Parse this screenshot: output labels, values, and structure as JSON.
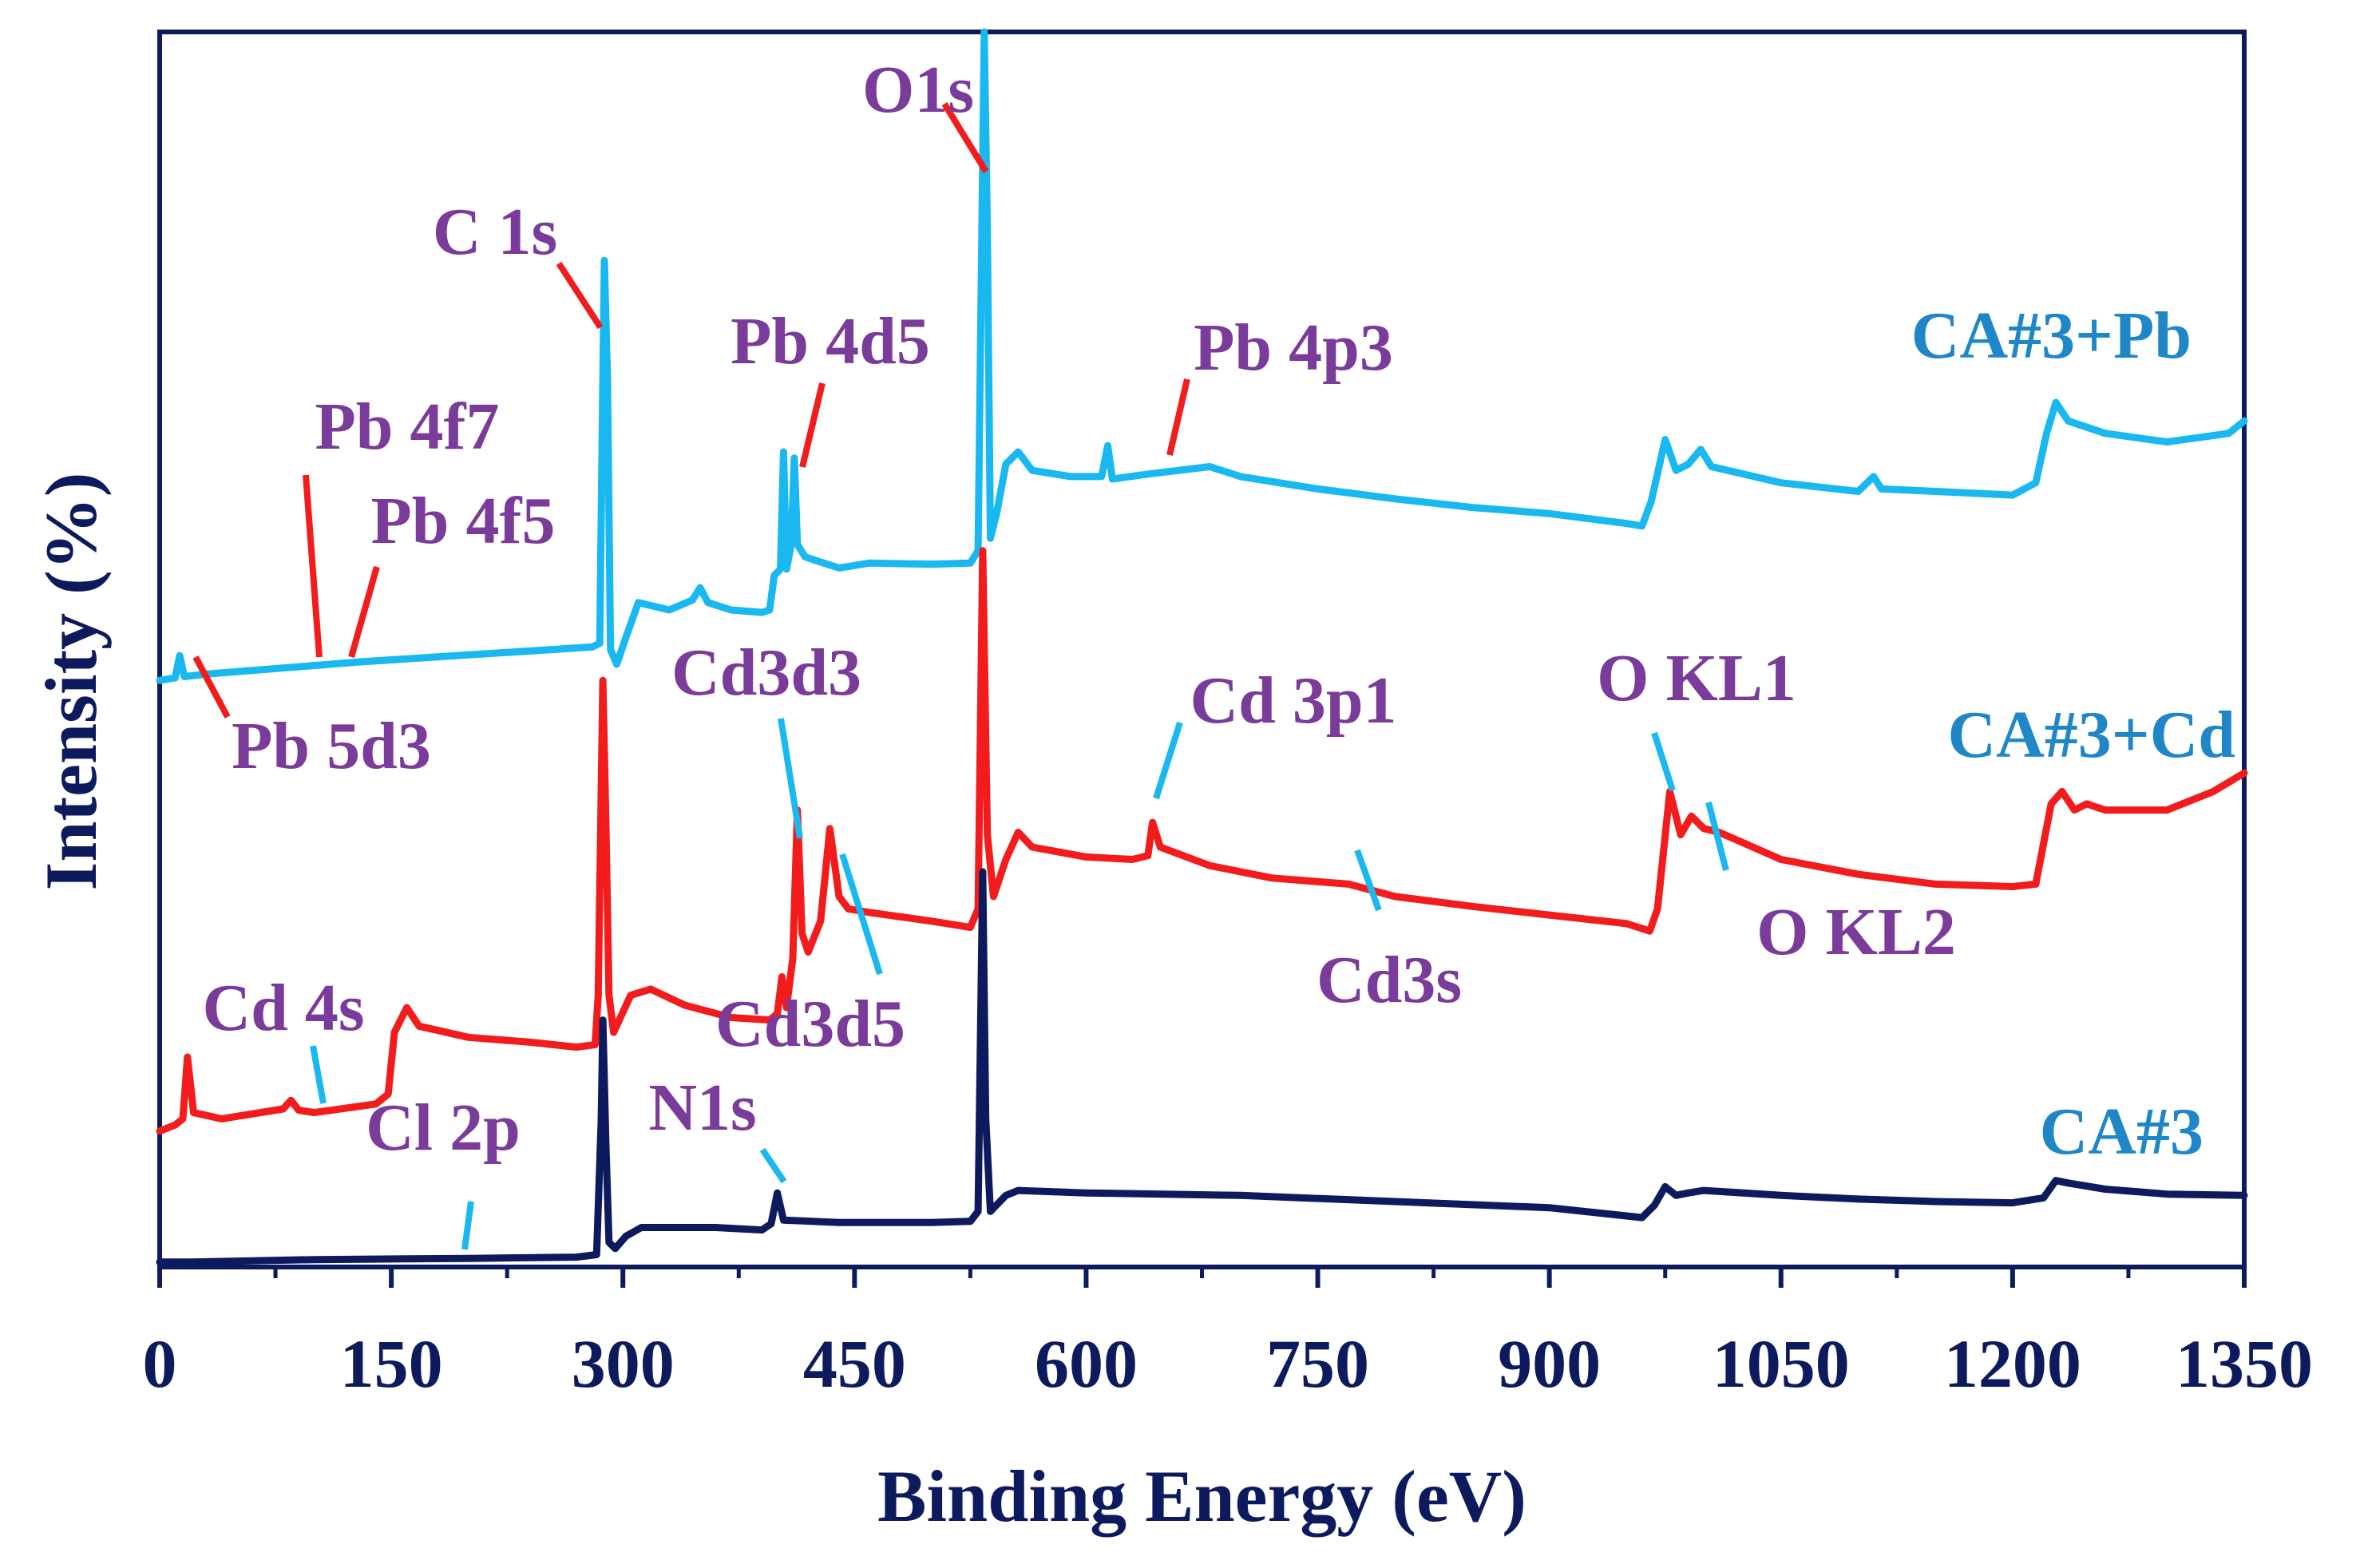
{
  "chart_data": {
    "type": "line",
    "title": "",
    "xlabel": "Binding Energy (eV)",
    "ylabel": "Intensity (%)",
    "xlim": [
      0,
      1350
    ],
    "ylim": [
      0,
      100
    ],
    "x_ticks": [
      "0",
      "150",
      "300",
      "450",
      "600",
      "750",
      "900",
      "1050",
      "1200",
      "1350"
    ],
    "y_ticks_visible": false,
    "series": [
      {
        "name": "CA#3+Pb",
        "color": "#1ab8f0",
        "points": [
          [
            0,
            47.5
          ],
          [
            10,
            47.7
          ],
          [
            13,
            49.5
          ],
          [
            16,
            47.8
          ],
          [
            30,
            48.0
          ],
          [
            80,
            48.5
          ],
          [
            130,
            49.0
          ],
          [
            180,
            49.4
          ],
          [
            230,
            49.8
          ],
          [
            280,
            50.2
          ],
          [
            285,
            50.5
          ],
          [
            287,
            72
          ],
          [
            288,
            81.5
          ],
          [
            290,
            72
          ],
          [
            292,
            50
          ],
          [
            296,
            48.8
          ],
          [
            302,
            51.0
          ],
          [
            310,
            53.8
          ],
          [
            330,
            53.2
          ],
          [
            345,
            54.0
          ],
          [
            350,
            55.0
          ],
          [
            355,
            53.8
          ],
          [
            370,
            53.2
          ],
          [
            390,
            53.0
          ],
          [
            395,
            53.2
          ],
          [
            398,
            56.0
          ],
          [
            402,
            56.5
          ],
          [
            404,
            66.0
          ],
          [
            406,
            56.5
          ],
          [
            409,
            58.5
          ],
          [
            411,
            65.5
          ],
          [
            413,
            58.5
          ],
          [
            418,
            57.5
          ],
          [
            425,
            57.2
          ],
          [
            440,
            56.6
          ],
          [
            460,
            57.0
          ],
          [
            500,
            56.9
          ],
          [
            525,
            57.0
          ],
          [
            530,
            58.0
          ],
          [
            534,
            100
          ],
          [
            536,
            84
          ],
          [
            538,
            59
          ],
          [
            542,
            61
          ],
          [
            548,
            65.0
          ],
          [
            556,
            66.0
          ],
          [
            565,
            64.5
          ],
          [
            590,
            64.0
          ],
          [
            610,
            64.0
          ],
          [
            614,
            66.5
          ],
          [
            617,
            63.8
          ],
          [
            640,
            64.2
          ],
          [
            660,
            64.5
          ],
          [
            680,
            64.8
          ],
          [
            700,
            64.0
          ],
          [
            750,
            63.0
          ],
          [
            800,
            62.2
          ],
          [
            850,
            61.5
          ],
          [
            900,
            61.0
          ],
          [
            950,
            60.2
          ],
          [
            960,
            60.0
          ],
          [
            966,
            62.0
          ],
          [
            975,
            67.0
          ],
          [
            982,
            64.5
          ],
          [
            990,
            65.0
          ],
          [
            998,
            66.2
          ],
          [
            1005,
            64.8
          ],
          [
            1050,
            63.5
          ],
          [
            1100,
            62.8
          ],
          [
            1110,
            64.0
          ],
          [
            1115,
            63.0
          ],
          [
            1150,
            62.8
          ],
          [
            1200,
            62.5
          ],
          [
            1215,
            63.5
          ],
          [
            1222,
            67.5
          ],
          [
            1228,
            70.0
          ],
          [
            1236,
            68.5
          ],
          [
            1260,
            67.5
          ],
          [
            1300,
            66.8
          ],
          [
            1340,
            67.5
          ],
          [
            1350,
            68.5
          ]
        ]
      },
      {
        "name": "CA#3+Cd",
        "color": "#f21c1c",
        "points": [
          [
            0,
            11.0
          ],
          [
            10,
            11.5
          ],
          [
            15,
            12.0
          ],
          [
            18,
            17.0
          ],
          [
            22,
            12.5
          ],
          [
            40,
            12.0
          ],
          [
            80,
            12.8
          ],
          [
            85,
            13.5
          ],
          [
            90,
            12.7
          ],
          [
            100,
            12.5
          ],
          [
            140,
            13.2
          ],
          [
            148,
            14.0
          ],
          [
            152,
            19.0
          ],
          [
            160,
            21.0
          ],
          [
            168,
            19.5
          ],
          [
            200,
            18.6
          ],
          [
            240,
            18.2
          ],
          [
            270,
            17.8
          ],
          [
            282,
            18.0
          ],
          [
            284,
            22
          ],
          [
            287,
            47.5
          ],
          [
            289,
            36
          ],
          [
            291,
            22
          ],
          [
            294,
            19.0
          ],
          [
            305,
            22.0
          ],
          [
            318,
            22.5
          ],
          [
            340,
            21.2
          ],
          [
            370,
            20.2
          ],
          [
            395,
            20.0
          ],
          [
            400,
            20.5
          ],
          [
            403,
            23.5
          ],
          [
            406,
            21.0
          ],
          [
            410,
            25.0
          ],
          [
            413,
            37.0
          ],
          [
            416,
            27.0
          ],
          [
            420,
            25.5
          ],
          [
            428,
            28.0
          ],
          [
            434,
            35.5
          ],
          [
            440,
            30.0
          ],
          [
            446,
            29.0
          ],
          [
            460,
            28.7
          ],
          [
            500,
            28.0
          ],
          [
            525,
            27.5
          ],
          [
            530,
            29.0
          ],
          [
            533,
            58.0
          ],
          [
            536,
            35
          ],
          [
            540,
            30
          ],
          [
            548,
            33.0
          ],
          [
            556,
            35.2
          ],
          [
            565,
            34.0
          ],
          [
            600,
            33.2
          ],
          [
            630,
            33.0
          ],
          [
            640,
            33.3
          ],
          [
            643,
            36.0
          ],
          [
            648,
            34.0
          ],
          [
            680,
            32.5
          ],
          [
            720,
            31.5
          ],
          [
            770,
            31.0
          ],
          [
            800,
            30.0
          ],
          [
            850,
            29.2
          ],
          [
            900,
            28.5
          ],
          [
            950,
            27.8
          ],
          [
            965,
            27.2
          ],
          [
            970,
            29.0
          ],
          [
            978,
            38.5
          ],
          [
            985,
            35.0
          ],
          [
            992,
            36.5
          ],
          [
            1000,
            35.5
          ],
          [
            1010,
            35.2
          ],
          [
            1050,
            33.0
          ],
          [
            1100,
            31.8
          ],
          [
            1150,
            31.0
          ],
          [
            1200,
            30.8
          ],
          [
            1215,
            31.0
          ],
          [
            1225,
            37.5
          ],
          [
            1232,
            38.5
          ],
          [
            1240,
            37.0
          ],
          [
            1248,
            37.5
          ],
          [
            1260,
            37.0
          ],
          [
            1300,
            37.0
          ],
          [
            1330,
            38.5
          ],
          [
            1350,
            40.0
          ]
        ]
      },
      {
        "name": "CA#3",
        "color": "#0d1b5e",
        "points": [
          [
            0,
            0.4
          ],
          [
            20,
            0.4
          ],
          [
            100,
            0.6
          ],
          [
            200,
            0.7
          ],
          [
            270,
            0.8
          ],
          [
            283,
            1.0
          ],
          [
            286,
            12
          ],
          [
            287,
            20.0
          ],
          [
            289,
            10
          ],
          [
            291,
            2.0
          ],
          [
            295,
            1.5
          ],
          [
            302,
            2.5
          ],
          [
            312,
            3.2
          ],
          [
            340,
            3.2
          ],
          [
            360,
            3.2
          ],
          [
            390,
            3.0
          ],
          [
            396,
            3.5
          ],
          [
            400,
            6.0
          ],
          [
            404,
            3.8
          ],
          [
            440,
            3.6
          ],
          [
            500,
            3.6
          ],
          [
            525,
            3.7
          ],
          [
            530,
            4.5
          ],
          [
            533,
            32.0
          ],
          [
            535,
            12
          ],
          [
            538,
            4.5
          ],
          [
            548,
            5.8
          ],
          [
            556,
            6.2
          ],
          [
            600,
            6.0
          ],
          [
            700,
            5.8
          ],
          [
            800,
            5.3
          ],
          [
            900,
            4.8
          ],
          [
            960,
            4.0
          ],
          [
            968,
            5.0
          ],
          [
            975,
            6.5
          ],
          [
            982,
            5.8
          ],
          [
            990,
            6.0
          ],
          [
            1000,
            6.2
          ],
          [
            1050,
            5.8
          ],
          [
            1100,
            5.5
          ],
          [
            1150,
            5.3
          ],
          [
            1200,
            5.2
          ],
          [
            1220,
            5.6
          ],
          [
            1228,
            7.0
          ],
          [
            1236,
            6.8
          ],
          [
            1260,
            6.3
          ],
          [
            1300,
            5.9
          ],
          [
            1350,
            5.8
          ]
        ]
      }
    ],
    "series_labels": [
      {
        "text": "CA#3+Pb",
        "series": "CA#3+Pb"
      },
      {
        "text": "CA#3+Cd",
        "series": "CA#3+Cd"
      },
      {
        "text": "CA#3",
        "series": "CA#3"
      }
    ],
    "annotations": [
      {
        "text": "O1s",
        "x": 533,
        "marker_color": "#f21c1c"
      },
      {
        "text": "C 1s",
        "x": 287,
        "marker_color": "#f21c1c"
      },
      {
        "text": "Pb 4d5",
        "x": 413,
        "marker_color": "#f21c1c"
      },
      {
        "text": "Pb 4p3",
        "x": 645,
        "marker_color": "#f21c1c"
      },
      {
        "text": "Pb 4f7",
        "x": 138,
        "marker_color": "#f21c1c"
      },
      {
        "text": "Pb 4f5",
        "x": 143,
        "marker_color": "#f21c1c"
      },
      {
        "text": "Pb 5d3",
        "x": 20,
        "marker_color": "#f21c1c"
      },
      {
        "text": "Cd3d3",
        "x": 412,
        "marker_color": "#1ab8f0"
      },
      {
        "text": "Cd 3p1",
        "x": 651,
        "marker_color": "#1ab8f0"
      },
      {
        "text": "O KL1",
        "x": 978,
        "marker_color": "#1ab8f0"
      },
      {
        "text": "Cd3d5",
        "x": 405,
        "marker_color": "#1ab8f0"
      },
      {
        "text": "Cd3s",
        "x": 770,
        "marker_color": "#1ab8f0"
      },
      {
        "text": "O KL2",
        "x": 1003,
        "marker_color": "#1ab8f0"
      },
      {
        "text": "Cd 4s",
        "x": 108,
        "marker_color": "#1ab8f0"
      },
      {
        "text": "Cl 2p",
        "x": 200,
        "marker_color": "#1ab8f0"
      },
      {
        "text": "N1s",
        "x": 400,
        "marker_color": "#1ab8f0"
      }
    ],
    "frame_color": "#0d1b5e",
    "grid": false,
    "legend": "none"
  }
}
